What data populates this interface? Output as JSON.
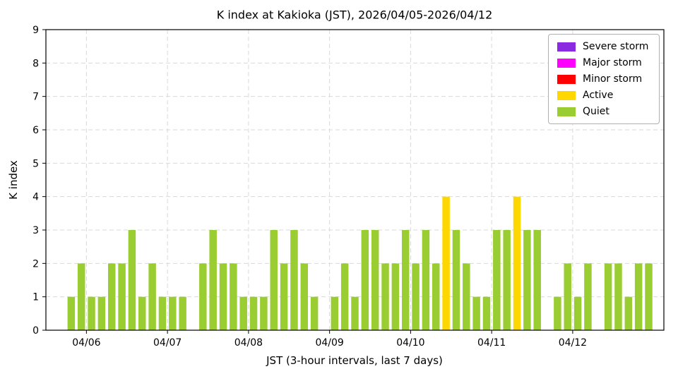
{
  "chart_data": {
    "type": "bar",
    "title": "K index at Kakioka (JST), 2026/04/05-2026/04/12",
    "xlabel": "JST (3-hour intervals, last 7 days)",
    "ylabel": "K index",
    "ylim": [
      0,
      9
    ],
    "yticks": [
      0,
      1,
      2,
      3,
      4,
      5,
      6,
      7,
      8,
      9
    ],
    "xtick_labels": [
      "04/06",
      "04/07",
      "04/08",
      "04/09",
      "04/10",
      "04/11",
      "04/12"
    ],
    "grid": true,
    "interval_hours": 3,
    "legend": {
      "position": "upper right",
      "entries": [
        {
          "label": "Severe storm",
          "color": "#8a2be2"
        },
        {
          "label": "Major storm",
          "color": "#ff00ff"
        },
        {
          "label": "Minor storm",
          "color": "#ff0000"
        },
        {
          "label": "Active",
          "color": "#ffd700"
        },
        {
          "label": "Quiet",
          "color": "#9acd32"
        }
      ]
    },
    "days": [
      {
        "date": "04/05",
        "start_hour": 18,
        "k": [
          1,
          2
        ]
      },
      {
        "date": "04/06",
        "start_hour": 0,
        "k": [
          1,
          1,
          2,
          2,
          3,
          1,
          2,
          1
        ]
      },
      {
        "date": "04/07",
        "start_hour": 0,
        "k": [
          1,
          1,
          0,
          2,
          3,
          2,
          2,
          1
        ]
      },
      {
        "date": "04/08",
        "start_hour": 0,
        "k": [
          1,
          1,
          3,
          2,
          3,
          2,
          1,
          0
        ]
      },
      {
        "date": "04/09",
        "start_hour": 0,
        "k": [
          1,
          2,
          1,
          3,
          3,
          2,
          2,
          3
        ]
      },
      {
        "date": "04/10",
        "start_hour": 0,
        "k": [
          2,
          3,
          2,
          4,
          3,
          2,
          1,
          1
        ]
      },
      {
        "date": "04/11",
        "start_hour": 0,
        "k": [
          3,
          3,
          4,
          3,
          3,
          0,
          1,
          2
        ]
      },
      {
        "date": "04/12",
        "start_hour": 0,
        "k": [
          1,
          2,
          0,
          2,
          2,
          1,
          2,
          2
        ]
      }
    ]
  }
}
